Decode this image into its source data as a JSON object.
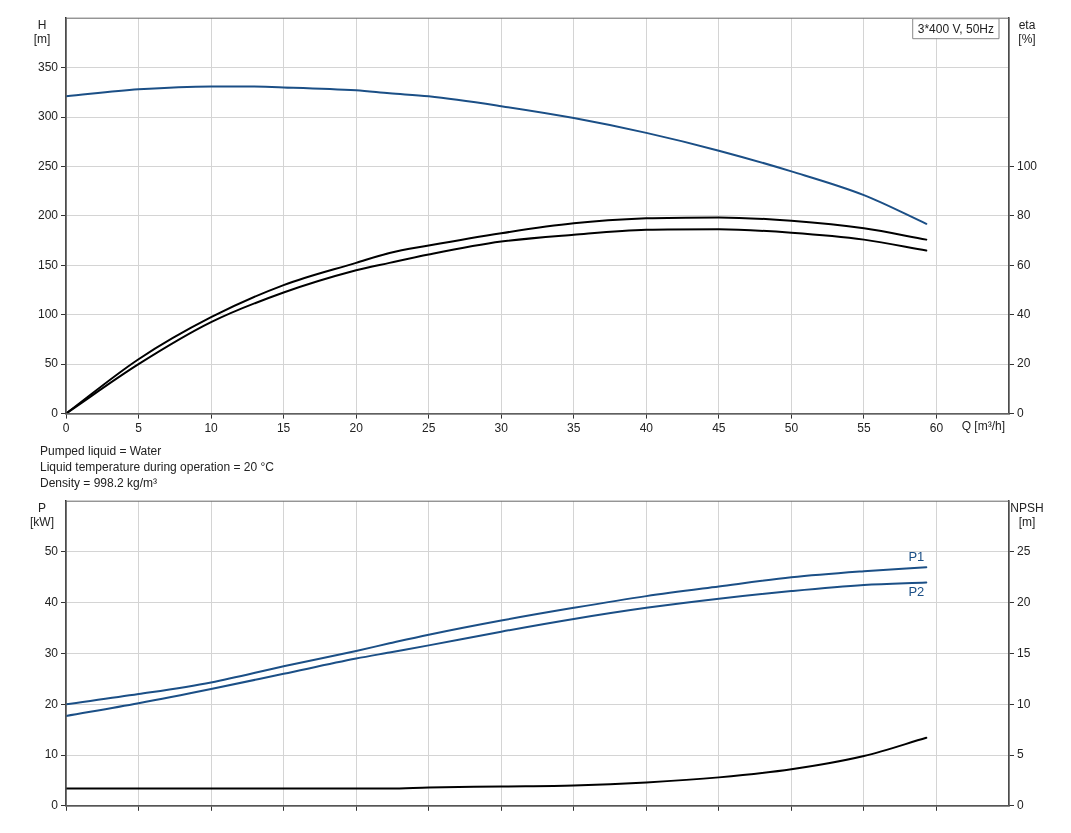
{
  "chart_data": [
    {
      "type": "line",
      "title": "3*400 V, 50Hz",
      "xlabel": "Q [m³/h]",
      "ylabel": "H\n[m]",
      "y2label": "eta\n[%]",
      "xlim": [
        0,
        65
      ],
      "xticks": [
        0,
        5,
        10,
        15,
        20,
        25,
        30,
        35,
        40,
        45,
        50,
        55,
        60
      ],
      "ylim": [
        0,
        400
      ],
      "yticks": [
        0,
        50,
        100,
        150,
        200,
        250,
        300,
        350
      ],
      "y2lim": [
        0,
        160
      ],
      "y2ticks": [
        0,
        20,
        40,
        60,
        80,
        100
      ],
      "grid": true,
      "legend": false,
      "marker": "none",
      "line_style": "solid",
      "annotations": [
        "Pumped liquid = Water",
        "Liquid temperature during operation = 20 °C",
        "Density = 998.2 kg/m³"
      ],
      "series": [
        {
          "color": "#1b4f86",
          "x": [
            0,
            5,
            10,
            12,
            15,
            20,
            22.3,
            25,
            30,
            35,
            40,
            45,
            50,
            55,
            59.3
          ],
          "values": [
            321,
            328,
            331,
            331,
            330,
            327,
            324,
            321,
            311,
            299,
            284,
            266,
            245,
            221,
            192
          ]
        },
        {
          "color": "#000000",
          "axis": "y2",
          "x": [
            0,
            5,
            10,
            15,
            20,
            22.3,
            25,
            30,
            35,
            40,
            45,
            50,
            55,
            59.3
          ],
          "values": [
            0,
            22,
            39,
            52,
            61,
            65,
            68,
            73,
            77,
            79,
            79.4,
            78,
            75,
            70.4
          ]
        },
        {
          "color": "#000000",
          "axis": "y2",
          "x": [
            0,
            5,
            10,
            15,
            20,
            22.3,
            25,
            30,
            35,
            40,
            45,
            50,
            55,
            59.3
          ],
          "values": [
            0,
            20,
            37,
            49,
            58,
            61,
            64.4,
            69.6,
            72.4,
            74.4,
            74.6,
            73.2,
            70.4,
            66
          ]
        }
      ]
    },
    {
      "type": "line",
      "ylabel": "P\n[kW]",
      "y2label": "NPSH\n[m]",
      "xlim": [
        0,
        65
      ],
      "xticks": [
        0,
        5,
        10,
        15,
        20,
        25,
        30,
        35,
        40,
        45,
        50,
        55,
        60
      ],
      "ylim": [
        0,
        60
      ],
      "yticks": [
        0,
        10,
        20,
        30,
        40,
        50
      ],
      "y2lim": [
        0,
        30
      ],
      "y2ticks": [
        0,
        5,
        10,
        15,
        20,
        25
      ],
      "grid": true,
      "legend": false,
      "marker": "none",
      "line_style": "solid",
      "tick_labels": "y",
      "series": [
        {
          "name": "P1",
          "color": "#1b4f86",
          "x": [
            0,
            5,
            10,
            15,
            20,
            22.3,
            25,
            30,
            35,
            40,
            45,
            50,
            55,
            59.3
          ],
          "values": [
            20,
            22,
            24.3,
            27.5,
            30.5,
            32,
            33.7,
            36.5,
            39,
            41.3,
            43.2,
            45,
            46.2,
            47
          ]
        },
        {
          "name": "P2",
          "color": "#1b4f86",
          "x": [
            0,
            5,
            10,
            15,
            20,
            22.3,
            25,
            30,
            35,
            40,
            45,
            50,
            55,
            59.3
          ],
          "values": [
            17.7,
            20.2,
            23,
            26,
            29,
            30.2,
            31.6,
            34.3,
            36.8,
            39,
            40.8,
            42.3,
            43.5,
            44
          ]
        },
        {
          "color": "#000000",
          "axis": "y2",
          "x": [
            0,
            10,
            20,
            22.3,
            25,
            30,
            35,
            40,
            45,
            50,
            55,
            59.3
          ],
          "values": [
            1.7,
            1.7,
            1.7,
            1.7,
            1.8,
            1.9,
            2.0,
            2.3,
            2.8,
            3.6,
            4.9,
            6.7
          ]
        }
      ]
    }
  ]
}
